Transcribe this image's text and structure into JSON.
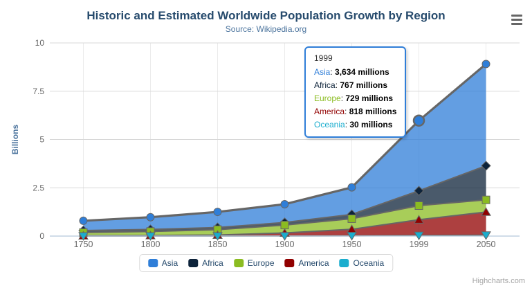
{
  "chart": {
    "credits": "Highcharts.com"
  },
  "chart_data": {
    "type": "area",
    "stacking": "normal",
    "title": "Historic and Estimated Worldwide Population Growth by Region",
    "subtitle": "Source: Wikipedia.org",
    "xlabel": "",
    "ylabel": "Billions",
    "unit": "millions",
    "categories": [
      "1750",
      "1800",
      "1850",
      "1900",
      "1950",
      "1999",
      "2050"
    ],
    "yticks": [
      "0",
      "2.5",
      "5",
      "7.5",
      "10"
    ],
    "ytick_values": [
      0,
      2.5,
      5,
      7.5,
      10
    ],
    "ylim": [
      0,
      10
    ],
    "grid": true,
    "legend_position": "bottom",
    "stack_order_bottom_to_top": [
      "Oceania",
      "America",
      "Europe",
      "Africa",
      "Asia"
    ],
    "series": [
      {
        "name": "Asia",
        "color": "#2f7ed8",
        "marker": "circle",
        "values": [
          502,
          635,
          809,
          947,
          1402,
          3634,
          5268
        ]
      },
      {
        "name": "Africa",
        "color": "#0d233a",
        "marker": "diamond",
        "values": [
          106,
          107,
          111,
          133,
          221,
          767,
          1766
        ]
      },
      {
        "name": "Europe",
        "color": "#8bbc21",
        "marker": "square",
        "values": [
          163,
          203,
          276,
          408,
          547,
          729,
          628
        ]
      },
      {
        "name": "America",
        "color": "#910000",
        "marker": "triangle",
        "values": [
          18,
          31,
          54,
          156,
          339,
          818,
          1201
        ]
      },
      {
        "name": "Oceania",
        "color": "#1aadce",
        "marker": "triangle-down",
        "values": [
          2,
          2,
          2,
          6,
          13,
          30,
          46
        ]
      }
    ]
  },
  "tooltip": {
    "header": "1999",
    "rows": [
      {
        "name": "Asia",
        "color": "#2f7ed8",
        "value": "3,634 millions"
      },
      {
        "name": "Africa",
        "color": "#0d233a",
        "value": "767 millions"
      },
      {
        "name": "Europe",
        "color": "#8bbc21",
        "value": "729 millions"
      },
      {
        "name": "America",
        "color": "#910000",
        "value": "818 millions"
      },
      {
        "name": "Oceania",
        "color": "#1aadce",
        "value": "30 millions"
      }
    ]
  },
  "legend": {
    "items": [
      {
        "label": "Asia",
        "color": "#2f7ed8"
      },
      {
        "label": "Africa",
        "color": "#0d233a"
      },
      {
        "label": "Europe",
        "color": "#8bbc21"
      },
      {
        "label": "America",
        "color": "#910000"
      },
      {
        "label": "Oceania",
        "color": "#1aadce"
      }
    ]
  },
  "hover": {
    "series": "Asia",
    "category": "1999",
    "category_index": 5
  }
}
